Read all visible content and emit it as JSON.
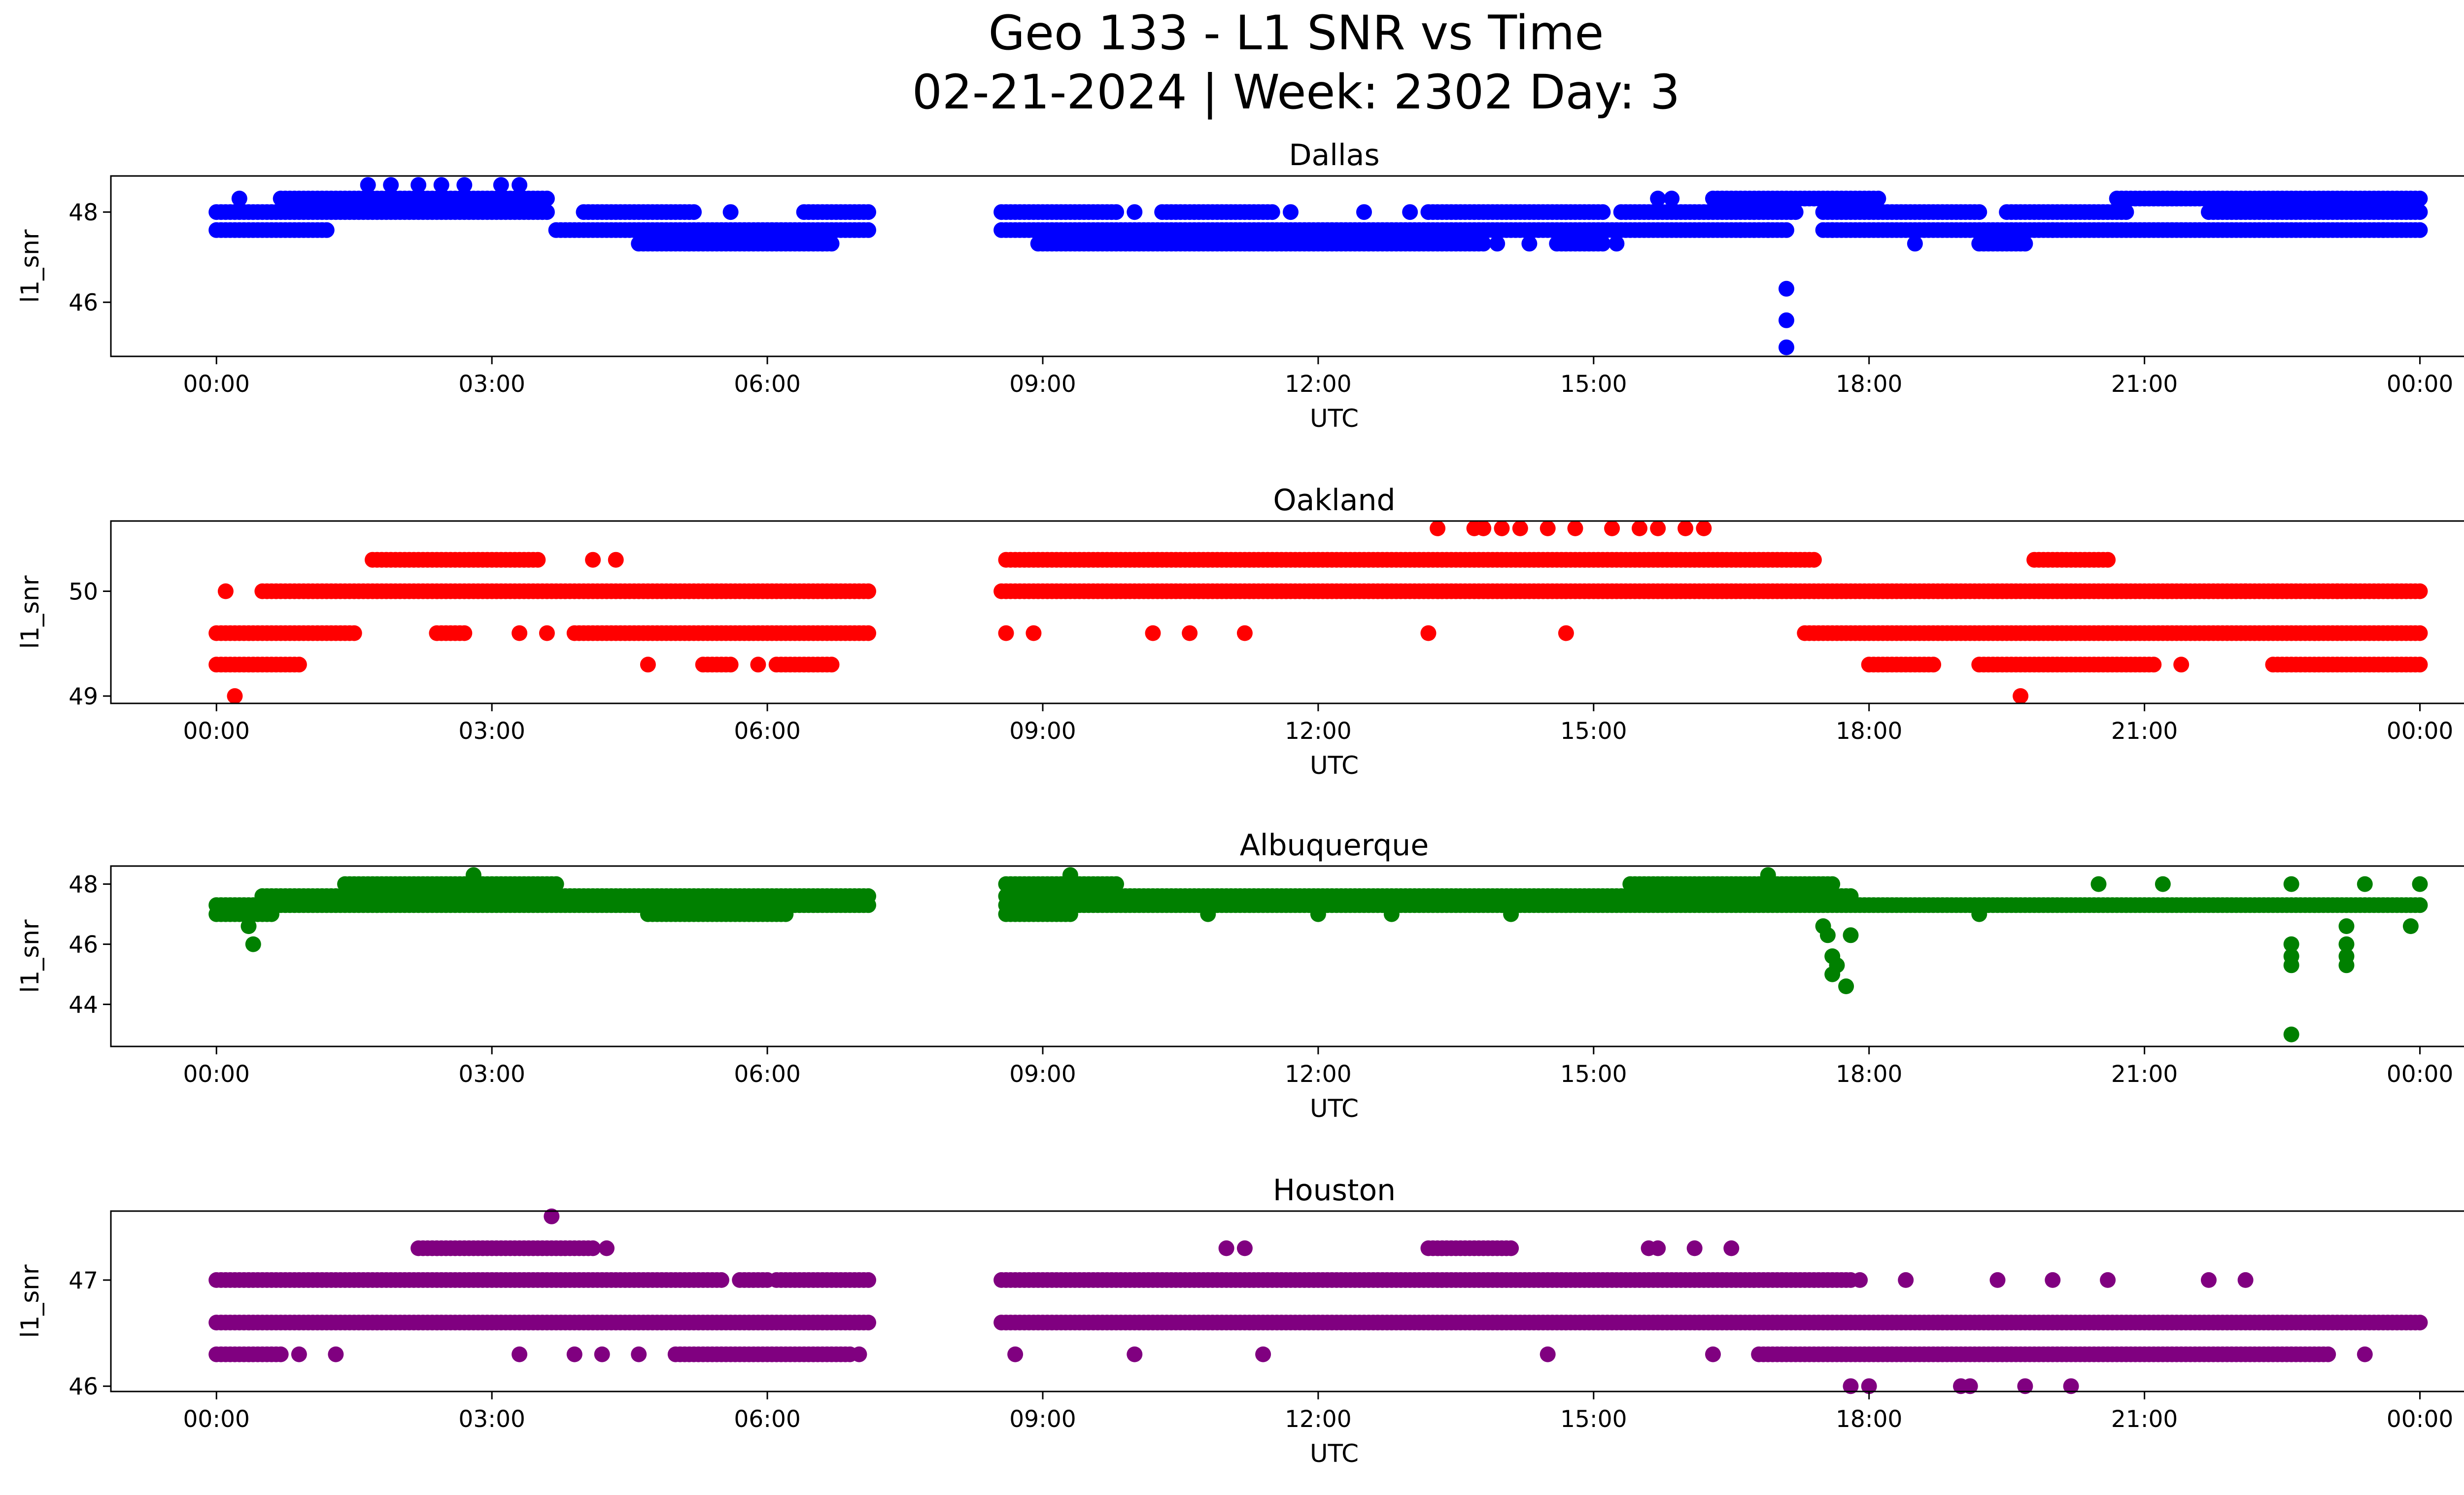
{
  "figure": {
    "title_line1": "Geo 133 - L1 SNR vs Time",
    "title_line2": "02-21-2024 | Week: 2302 Day: 3"
  },
  "chart_data": [
    {
      "type": "scatter",
      "title": "Dallas",
      "xlabel": "UTC",
      "ylabel": "l1_snr",
      "color": "#0000ff",
      "x_ticks": [
        "00:00",
        "03:00",
        "06:00",
        "09:00",
        "12:00",
        "15:00",
        "18:00",
        "21:00",
        "00:00"
      ],
      "y_ticks": [
        46,
        48
      ],
      "xlim_hours": [
        -1.15,
        25.5
      ],
      "ylim": [
        44.8,
        48.8
      ],
      "bands": [
        {
          "y": 47.6,
          "ranges": [
            [
              0.0,
              1.2
            ],
            [
              3.7,
              7.1
            ],
            [
              8.55,
              17.1
            ],
            [
              17.5,
              24.0
            ]
          ]
        },
        {
          "y": 48.0,
          "ranges": [
            [
              0.0,
              3.6
            ],
            [
              4.0,
              5.2
            ],
            [
              6.4,
              7.1
            ],
            [
              8.55,
              9.8
            ],
            [
              10.3,
              11.5
            ],
            [
              13.2,
              15.1
            ],
            [
              15.3,
              17.2
            ],
            [
              17.5,
              19.2
            ],
            [
              19.5,
              20.8
            ],
            [
              21.7,
              24.0
            ]
          ]
        },
        {
          "y": 48.3,
          "ranges": [
            [
              0.7,
              3.6
            ],
            [
              16.3,
              18.1
            ],
            [
              20.7,
              24.0
            ]
          ]
        },
        {
          "y": 47.3,
          "ranges": [
            [
              4.6,
              6.7
            ],
            [
              9.0,
              13.8
            ],
            [
              14.6,
              15.1
            ],
            [
              19.2,
              19.7
            ]
          ]
        }
      ],
      "points": [
        {
          "x": 0.25,
          "y": 48.3
        },
        {
          "x": 1.65,
          "y": 48.6
        },
        {
          "x": 1.9,
          "y": 48.6
        },
        {
          "x": 2.2,
          "y": 48.6
        },
        {
          "x": 2.45,
          "y": 48.6
        },
        {
          "x": 2.7,
          "y": 48.6
        },
        {
          "x": 3.1,
          "y": 48.6
        },
        {
          "x": 3.3,
          "y": 48.6
        },
        {
          "x": 5.6,
          "y": 48.0
        },
        {
          "x": 6.6,
          "y": 47.3
        },
        {
          "x": 8.95,
          "y": 47.3
        },
        {
          "x": 10.0,
          "y": 48.0
        },
        {
          "x": 11.7,
          "y": 48.0
        },
        {
          "x": 12.5,
          "y": 48.0
        },
        {
          "x": 13.0,
          "y": 48.0
        },
        {
          "x": 13.95,
          "y": 47.3
        },
        {
          "x": 14.3,
          "y": 47.3
        },
        {
          "x": 15.25,
          "y": 47.3
        },
        {
          "x": 15.7,
          "y": 48.3
        },
        {
          "x": 15.85,
          "y": 48.3
        },
        {
          "x": 16.6,
          "y": 47.6
        },
        {
          "x": 16.9,
          "y": 47.6
        },
        {
          "x": 17.1,
          "y": 46.3
        },
        {
          "x": 17.1,
          "y": 45.6
        },
        {
          "x": 17.1,
          "y": 45.0
        },
        {
          "x": 17.6,
          "y": 47.6
        },
        {
          "x": 18.5,
          "y": 47.3
        },
        {
          "x": 20.0,
          "y": 47.6
        },
        {
          "x": 23.6,
          "y": 47.6
        }
      ]
    },
    {
      "type": "scatter",
      "title": "Oakland",
      "xlabel": "UTC",
      "ylabel": "l1_snr",
      "color": "#ff0000",
      "x_ticks": [
        "00:00",
        "03:00",
        "06:00",
        "09:00",
        "12:00",
        "15:00",
        "18:00",
        "21:00",
        "00:00"
      ],
      "y_ticks": [
        49,
        50
      ],
      "xlim_hours": [
        -1.15,
        25.5
      ],
      "ylim": [
        48.93,
        50.67
      ],
      "bands": [
        {
          "y": 49.6,
          "ranges": [
            [
              0.0,
              1.5
            ],
            [
              2.4,
              2.7
            ],
            [
              3.9,
              7.1
            ],
            [
              17.3,
              24.0
            ]
          ]
        },
        {
          "y": 50.0,
          "ranges": [
            [
              0.5,
              7.1
            ],
            [
              8.55,
              24.0
            ]
          ]
        },
        {
          "y": 50.3,
          "ranges": [
            [
              1.7,
              3.5
            ],
            [
              8.6,
              17.4
            ],
            [
              19.8,
              20.6
            ]
          ]
        },
        {
          "y": 49.3,
          "ranges": [
            [
              0.0,
              0.9
            ],
            [
              5.3,
              5.6
            ],
            [
              6.1,
              6.7
            ],
            [
              18.0,
              18.7
            ],
            [
              19.2,
              21.1
            ],
            [
              22.4,
              24.0
            ]
          ]
        }
      ],
      "points": [
        {
          "x": 0.1,
          "y": 50.0
        },
        {
          "x": 0.2,
          "y": 49.0
        },
        {
          "x": 3.3,
          "y": 49.6
        },
        {
          "x": 3.6,
          "y": 49.6
        },
        {
          "x": 4.1,
          "y": 50.3
        },
        {
          "x": 4.35,
          "y": 50.3
        },
        {
          "x": 4.7,
          "y": 49.3
        },
        {
          "x": 5.9,
          "y": 49.3
        },
        {
          "x": 8.6,
          "y": 49.6
        },
        {
          "x": 8.9,
          "y": 49.6
        },
        {
          "x": 10.2,
          "y": 49.6
        },
        {
          "x": 10.6,
          "y": 49.6
        },
        {
          "x": 11.2,
          "y": 49.6
        },
        {
          "x": 13.2,
          "y": 49.6
        },
        {
          "x": 13.3,
          "y": 50.6
        },
        {
          "x": 13.7,
          "y": 50.6
        },
        {
          "x": 13.8,
          "y": 50.6
        },
        {
          "x": 14.0,
          "y": 50.6
        },
        {
          "x": 14.2,
          "y": 50.6
        },
        {
          "x": 14.5,
          "y": 50.6
        },
        {
          "x": 14.7,
          "y": 49.6
        },
        {
          "x": 14.8,
          "y": 50.6
        },
        {
          "x": 15.2,
          "y": 50.6
        },
        {
          "x": 15.5,
          "y": 50.6
        },
        {
          "x": 15.7,
          "y": 50.6
        },
        {
          "x": 16.0,
          "y": 50.6
        },
        {
          "x": 16.2,
          "y": 50.6
        },
        {
          "x": 19.65,
          "y": 49.0
        },
        {
          "x": 21.4,
          "y": 49.3
        },
        {
          "x": 22.1,
          "y": 50.0
        },
        {
          "x": 23.1,
          "y": 50.0
        }
      ]
    },
    {
      "type": "scatter",
      "title": "Albuquerque",
      "xlabel": "UTC",
      "ylabel": "l1_snr",
      "color": "#008000",
      "x_ticks": [
        "00:00",
        "03:00",
        "06:00",
        "09:00",
        "12:00",
        "15:00",
        "18:00",
        "21:00",
        "00:00"
      ],
      "y_ticks": [
        44,
        46,
        48
      ],
      "xlim_hours": [
        -1.15,
        25.5
      ],
      "ylim": [
        42.6,
        48.6
      ],
      "bands": [
        {
          "y": 47.0,
          "ranges": [
            [
              0.0,
              0.6
            ],
            [
              4.7,
              6.2
            ],
            [
              8.6,
              9.3
            ]
          ]
        },
        {
          "y": 47.3,
          "ranges": [
            [
              0.0,
              7.1
            ],
            [
              8.6,
              24.0
            ]
          ]
        },
        {
          "y": 47.6,
          "ranges": [
            [
              0.5,
              7.1
            ],
            [
              8.6,
              17.8
            ]
          ]
        },
        {
          "y": 48.0,
          "ranges": [
            [
              1.4,
              3.7
            ],
            [
              8.6,
              9.8
            ],
            [
              15.4,
              17.6
            ]
          ]
        }
      ],
      "points": [
        {
          "x": 0.35,
          "y": 46.6
        },
        {
          "x": 0.4,
          "y": 46.0
        },
        {
          "x": 2.8,
          "y": 48.3
        },
        {
          "x": 9.3,
          "y": 48.3
        },
        {
          "x": 10.8,
          "y": 47.0
        },
        {
          "x": 12.0,
          "y": 47.0
        },
        {
          "x": 12.8,
          "y": 47.0
        },
        {
          "x": 14.1,
          "y": 47.0
        },
        {
          "x": 16.9,
          "y": 48.3
        },
        {
          "x": 17.5,
          "y": 46.6
        },
        {
          "x": 17.55,
          "y": 46.3
        },
        {
          "x": 17.6,
          "y": 45.6
        },
        {
          "x": 17.6,
          "y": 45.0
        },
        {
          "x": 17.65,
          "y": 45.3
        },
        {
          "x": 17.75,
          "y": 44.6
        },
        {
          "x": 17.8,
          "y": 46.3
        },
        {
          "x": 19.2,
          "y": 47.0
        },
        {
          "x": 20.5,
          "y": 48.0
        },
        {
          "x": 21.2,
          "y": 48.0
        },
        {
          "x": 22.6,
          "y": 48.0
        },
        {
          "x": 22.6,
          "y": 46.0
        },
        {
          "x": 22.6,
          "y": 45.6
        },
        {
          "x": 22.6,
          "y": 45.3
        },
        {
          "x": 22.6,
          "y": 43.0
        },
        {
          "x": 23.2,
          "y": 46.6
        },
        {
          "x": 23.2,
          "y": 46.0
        },
        {
          "x": 23.2,
          "y": 45.6
        },
        {
          "x": 23.2,
          "y": 45.3
        },
        {
          "x": 23.4,
          "y": 48.0
        },
        {
          "x": 23.9,
          "y": 46.6
        },
        {
          "x": 24.0,
          "y": 48.0
        }
      ]
    },
    {
      "type": "scatter",
      "title": "Houston",
      "xlabel": "UTC",
      "ylabel": "l1_snr",
      "color": "#800080",
      "x_ticks": [
        "00:00",
        "03:00",
        "06:00",
        "09:00",
        "12:00",
        "15:00",
        "18:00",
        "21:00",
        "00:00"
      ],
      "y_ticks": [
        46,
        47
      ],
      "xlim_hours": [
        -1.15,
        25.5
      ],
      "ylim": [
        45.95,
        47.65
      ],
      "bands": [
        {
          "y": 47.0,
          "ranges": [
            [
              0.0,
              5.5
            ],
            [
              5.7,
              6.0
            ],
            [
              6.1,
              7.1
            ],
            [
              8.55,
              17.8
            ]
          ]
        },
        {
          "y": 46.6,
          "ranges": [
            [
              0.0,
              7.1
            ],
            [
              8.55,
              24.0
            ]
          ]
        },
        {
          "y": 46.3,
          "ranges": [
            [
              0.0,
              0.7
            ],
            [
              5.0,
              6.9
            ],
            [
              16.8,
              23.0
            ]
          ]
        },
        {
          "y": 47.3,
          "ranges": [
            [
              2.2,
              4.1
            ],
            [
              13.2,
              14.1
            ]
          ]
        }
      ],
      "points": [
        {
          "x": 0.9,
          "y": 46.3
        },
        {
          "x": 1.3,
          "y": 46.3
        },
        {
          "x": 3.3,
          "y": 46.3
        },
        {
          "x": 3.65,
          "y": 47.6
        },
        {
          "x": 3.9,
          "y": 46.3
        },
        {
          "x": 4.2,
          "y": 46.3
        },
        {
          "x": 4.6,
          "y": 46.3
        },
        {
          "x": 4.25,
          "y": 47.3
        },
        {
          "x": 7.0,
          "y": 46.3
        },
        {
          "x": 8.7,
          "y": 46.3
        },
        {
          "x": 10.0,
          "y": 46.3
        },
        {
          "x": 11.0,
          "y": 47.3
        },
        {
          "x": 11.2,
          "y": 47.3
        },
        {
          "x": 11.4,
          "y": 46.3
        },
        {
          "x": 14.5,
          "y": 46.3
        },
        {
          "x": 15.6,
          "y": 47.3
        },
        {
          "x": 15.7,
          "y": 47.3
        },
        {
          "x": 16.1,
          "y": 47.3
        },
        {
          "x": 16.3,
          "y": 46.3
        },
        {
          "x": 16.5,
          "y": 47.3
        },
        {
          "x": 17.9,
          "y": 47.0
        },
        {
          "x": 17.8,
          "y": 46.0
        },
        {
          "x": 18.0,
          "y": 46.0
        },
        {
          "x": 18.4,
          "y": 47.0
        },
        {
          "x": 19.0,
          "y": 46.0
        },
        {
          "x": 19.1,
          "y": 46.0
        },
        {
          "x": 19.4,
          "y": 47.0
        },
        {
          "x": 19.7,
          "y": 46.0
        },
        {
          "x": 20.0,
          "y": 47.0
        },
        {
          "x": 20.2,
          "y": 46.0
        },
        {
          "x": 20.6,
          "y": 47.0
        },
        {
          "x": 21.7,
          "y": 47.0
        },
        {
          "x": 22.1,
          "y": 47.0
        },
        {
          "x": 23.4,
          "y": 46.3
        }
      ]
    }
  ]
}
